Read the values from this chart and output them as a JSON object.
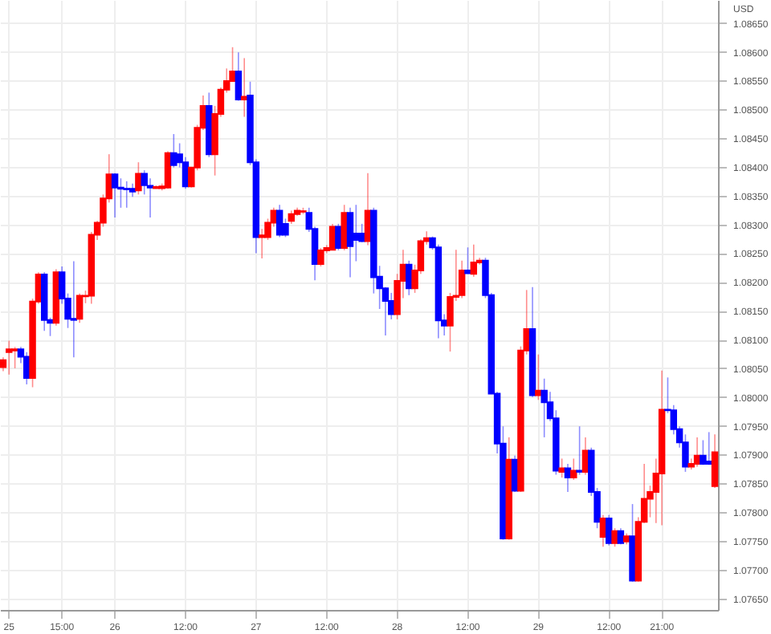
{
  "chart_data": {
    "type": "candlestick",
    "ylabel": "USD",
    "categories": [
      null,
      "25",
      null,
      null,
      null,
      null,
      null,
      null,
      null,
      null,
      "15:00",
      null,
      null,
      null,
      null,
      null,
      null,
      null,
      null,
      "26",
      null,
      null,
      null,
      null,
      null,
      null,
      null,
      null,
      null,
      null,
      null,
      "12:00",
      null,
      null,
      null,
      null,
      null,
      null,
      null,
      null,
      null,
      null,
      null,
      "27",
      null,
      null,
      null,
      null,
      null,
      null,
      null,
      null,
      null,
      null,
      null,
      "12:00",
      null,
      null,
      null,
      null,
      null,
      null,
      null,
      null,
      null,
      null,
      null,
      "28",
      null,
      null,
      null,
      null,
      null,
      null,
      null,
      null,
      null,
      null,
      null,
      "12:00",
      null,
      null,
      null,
      null,
      null,
      null,
      null,
      null,
      null,
      null,
      null,
      "29",
      null,
      null,
      null,
      null,
      null,
      null,
      null,
      null,
      null,
      null,
      null,
      "12:00",
      null,
      null,
      null,
      null,
      null,
      null,
      null,
      null,
      "21:00",
      null,
      null,
      null,
      null,
      null,
      null,
      null,
      null,
      null
    ],
    "ohlc": [
      [
        1.08052,
        1.08069,
        1.08045,
        1.08064
      ],
      [
        1.08078,
        1.08098,
        1.08039,
        1.08083
      ],
      [
        1.08081,
        1.08087,
        1.0805,
        1.08083
      ],
      [
        1.08083,
        1.08087,
        1.08059,
        1.0807
      ],
      [
        1.0807,
        1.08078,
        1.08022,
        1.08033
      ],
      [
        1.08033,
        1.08171,
        1.08017,
        1.08166
      ],
      [
        1.08166,
        1.08217,
        1.08162,
        1.08213
      ],
      [
        1.08213,
        1.08217,
        1.08115,
        1.08134
      ],
      [
        1.08134,
        1.08138,
        1.08106,
        1.08129
      ],
      [
        1.08129,
        1.08222,
        1.08124,
        1.08217
      ],
      [
        1.08217,
        1.08227,
        1.08162,
        1.08171
      ],
      [
        1.08171,
        1.0818,
        1.0812,
        1.08136
      ],
      [
        1.08136,
        1.08236,
        1.08069,
        1.08134
      ],
      [
        1.08136,
        1.0818,
        1.08129,
        1.08176
      ],
      [
        1.08175,
        1.08185,
        1.08163,
        1.08176
      ],
      [
        1.08176,
        1.08287,
        1.08162,
        1.08282
      ],
      [
        1.08282,
        1.08306,
        1.08273,
        1.08303
      ],
      [
        1.08303,
        1.08352,
        1.08296,
        1.08345
      ],
      [
        1.08345,
        1.08422,
        1.08338,
        1.08387
      ],
      [
        1.08387,
        1.08389,
        1.08312,
        1.08364
      ],
      [
        1.08364,
        1.0838,
        1.08329,
        1.08362
      ],
      [
        1.08362,
        1.08375,
        1.08329,
        1.08361
      ],
      [
        1.08362,
        1.08371,
        1.08348,
        1.08357
      ],
      [
        1.08359,
        1.08408,
        1.08352,
        1.08388
      ],
      [
        1.08388,
        1.08394,
        1.08352,
        1.08368
      ],
      [
        1.08367,
        1.0838,
        1.08312,
        1.08364
      ],
      [
        1.08363,
        1.08368,
        1.08362,
        1.08365
      ],
      [
        1.08363,
        1.08371,
        1.08359,
        1.08366
      ],
      [
        1.08364,
        1.08427,
        1.08362,
        1.08424
      ],
      [
        1.08424,
        1.08457,
        1.08399,
        1.08403
      ],
      [
        1.08422,
        1.08441,
        1.08399,
        1.08408
      ],
      [
        1.08408,
        1.08417,
        1.08362,
        1.08366
      ],
      [
        1.08366,
        1.08399,
        1.08364,
        1.08399
      ],
      [
        1.08399,
        1.08473,
        1.08394,
        1.08468
      ],
      [
        1.08468,
        1.08524,
        1.08464,
        1.08506
      ],
      [
        1.08506,
        1.08529,
        1.08417,
        1.08422
      ],
      [
        1.08422,
        1.08506,
        1.08385,
        1.08492
      ],
      [
        1.08492,
        1.08538,
        1.08487,
        1.08534
      ],
      [
        1.08534,
        1.08571,
        1.08529,
        1.08549
      ],
      [
        1.08549,
        1.08608,
        1.08548,
        1.08566
      ],
      [
        1.08566,
        1.08599,
        1.08515,
        1.08517
      ],
      [
        1.08517,
        1.08589,
        1.08487,
        1.08522
      ],
      [
        1.08524,
        1.08548,
        1.08403,
        1.08408
      ],
      [
        1.08408,
        1.08413,
        1.0825,
        1.08278
      ],
      [
        1.08278,
        1.08292,
        1.08241,
        1.08281
      ],
      [
        1.08278,
        1.0831,
        1.08273,
        1.08303
      ],
      [
        1.08303,
        1.08329,
        1.08296,
        1.08324
      ],
      [
        1.08324,
        1.08334,
        1.08278,
        1.08282
      ],
      [
        1.08301,
        1.0831,
        1.08278,
        1.08282
      ],
      [
        1.08306,
        1.08324,
        1.08301,
        1.08318
      ],
      [
        1.08318,
        1.08329,
        1.08315,
        1.08324
      ],
      [
        1.08322,
        1.08329,
        1.08318,
        1.08323
      ],
      [
        1.0832,
        1.08329,
        1.08287,
        1.08292
      ],
      [
        1.08292,
        1.08296,
        1.08203,
        1.08231
      ],
      [
        1.08231,
        1.08259,
        1.08227,
        1.08255
      ],
      [
        1.08255,
        1.08264,
        1.0825,
        1.08259
      ],
      [
        1.08256,
        1.08301,
        1.08255,
        1.08296
      ],
      [
        1.08296,
        1.08301,
        1.08255,
        1.08259
      ],
      [
        1.08259,
        1.08334,
        1.08255,
        1.0832
      ],
      [
        1.0832,
        1.08329,
        1.08208,
        1.08262
      ],
      [
        1.08284,
        1.08334,
        1.08236,
        1.08273
      ],
      [
        1.08284,
        1.08301,
        1.08269,
        1.08271
      ],
      [
        1.08271,
        1.08389,
        1.08264,
        1.08324
      ],
      [
        1.08324,
        1.08329,
        1.0818,
        1.08208
      ],
      [
        1.08209,
        1.08228,
        1.08153,
        1.08189
      ],
      [
        1.08189,
        1.08191,
        1.08107,
        1.08167
      ],
      [
        1.08167,
        1.08181,
        1.08135,
        1.08144
      ],
      [
        1.08144,
        1.08214,
        1.08135,
        1.08202
      ],
      [
        1.08202,
        1.08256,
        1.08172,
        1.0823
      ],
      [
        1.0823,
        1.08237,
        1.08177,
        1.08189
      ],
      [
        1.08189,
        1.0823,
        1.08181,
        1.0822
      ],
      [
        1.0822,
        1.08274,
        1.08214,
        1.08271
      ],
      [
        1.08271,
        1.08288,
        1.08265,
        1.08276
      ],
      [
        1.08276,
        1.08279,
        1.08256,
        1.0826
      ],
      [
        1.0826,
        1.08265,
        1.08102,
        1.08133
      ],
      [
        1.08133,
        1.08144,
        1.08107,
        1.08124
      ],
      [
        1.08124,
        1.08181,
        1.08079,
        1.08174
      ],
      [
        1.08174,
        1.08256,
        1.08167,
        1.08176
      ],
      [
        1.08177,
        1.08237,
        1.08172,
        1.0822
      ],
      [
        1.0822,
        1.0826,
        1.08214,
        1.08215
      ],
      [
        1.08214,
        1.08265,
        1.08209,
        1.08234
      ],
      [
        1.08234,
        1.08242,
        1.0823,
        1.08237
      ],
      [
        1.08237,
        1.08242,
        1.08172,
        1.08177
      ],
      [
        1.08177,
        1.08181,
        1.08005,
        1.08006
      ],
      [
        1.08006,
        1.08009,
        1.07902,
        1.07919
      ],
      [
        1.07919,
        1.07949,
        1.07752,
        1.07754
      ],
      [
        1.07754,
        1.0793,
        1.07752,
        1.07891
      ],
      [
        1.07891,
        1.07898,
        1.07835,
        1.07837
      ],
      [
        1.07837,
        1.08088,
        1.07835,
        1.08081
      ],
      [
        1.08081,
        1.08186,
        1.08074,
        1.08118
      ],
      [
        1.08118,
        1.08191,
        1.08,
        1.08003
      ],
      [
        1.08003,
        1.08074,
        1.07995,
        1.08011
      ],
      [
        1.08011,
        1.08032,
        1.0793,
        1.07991
      ],
      [
        1.07991,
        1.08009,
        1.07958,
        1.07963
      ],
      [
        1.07963,
        1.07977,
        1.07865,
        1.07872
      ],
      [
        1.0787,
        1.07893,
        1.0786,
        1.07876
      ],
      [
        1.07876,
        1.07884,
        1.07835,
        1.0786
      ],
      [
        1.0786,
        1.07893,
        1.07856,
        1.07872
      ],
      [
        1.07872,
        1.07949,
        1.07865,
        1.0787
      ],
      [
        1.0787,
        1.0793,
        1.07865,
        1.07907
      ],
      [
        1.07907,
        1.07912,
        1.07828,
        1.07835
      ],
      [
        1.07835,
        1.07842,
        1.07772,
        1.07783
      ],
      [
        1.07757,
        1.07795,
        1.0774,
        1.07789
      ],
      [
        1.07789,
        1.07795,
        1.07742,
        1.07746
      ],
      [
        1.07746,
        1.07772,
        1.0774,
        1.07767
      ],
      [
        1.07767,
        1.07772,
        1.07744,
        1.07746
      ],
      [
        1.07749,
        1.07763,
        1.07744,
        1.07758
      ],
      [
        1.07758,
        1.07814,
        1.07679,
        1.07681
      ],
      [
        1.07681,
        1.07791,
        1.07679,
        1.07783
      ],
      [
        1.07783,
        1.07884,
        1.07781,
        1.07823
      ],
      [
        1.07823,
        1.07846,
        1.07791,
        1.07835
      ],
      [
        1.07835,
        1.07893,
        1.07781,
        1.07867
      ],
      [
        1.07867,
        1.08046,
        1.07777,
        1.07978
      ],
      [
        1.07978,
        1.08034,
        1.07972,
        1.07977
      ],
      [
        1.07977,
        1.07986,
        1.07935,
        1.07944
      ],
      [
        1.07944,
        1.07949,
        1.07912,
        1.07921
      ],
      [
        1.07921,
        1.07935,
        1.0787,
        1.07879
      ],
      [
        1.07879,
        1.07893,
        1.07874,
        1.07884
      ],
      [
        1.07884,
        1.0793,
        1.07879,
        1.07898
      ],
      [
        1.07898,
        1.07925,
        1.07882,
        1.07884
      ],
      [
        1.07888,
        1.07939,
        1.07882,
        1.07884
      ],
      [
        1.07845,
        1.07935,
        1.07842,
        1.07904
      ]
    ],
    "colors": [
      "#ff0000",
      "#ff0000",
      "#ff0000",
      "#0000ff",
      "#0000ff",
      "#ff0000",
      "#ff0000",
      "#0000ff",
      "#0000ff",
      "#ff0000",
      "#0000ff",
      "#0000ff",
      "#0000ff",
      "#ff0000",
      "#ff0000",
      "#ff0000",
      "#ff0000",
      "#ff0000",
      "#ff0000",
      "#0000ff",
      "#0000ff",
      "#0000ff",
      "#0000ff",
      "#ff0000",
      "#0000ff",
      "#0000ff",
      "#ff0000",
      "#ff0000",
      "#ff0000",
      "#0000ff",
      "#0000ff",
      "#0000ff",
      "#ff0000",
      "#ff0000",
      "#ff0000",
      "#0000ff",
      "#ff0000",
      "#ff0000",
      "#ff0000",
      "#ff0000",
      "#0000ff",
      "#ff0000",
      "#0000ff",
      "#0000ff",
      "#ff0000",
      "#ff0000",
      "#ff0000",
      "#0000ff",
      "#0000ff",
      "#ff0000",
      "#ff0000",
      "#ff0000",
      "#0000ff",
      "#0000ff",
      "#ff0000",
      "#ff0000",
      "#ff0000",
      "#0000ff",
      "#ff0000",
      "#0000ff",
      "#0000ff",
      "#0000ff",
      "#ff0000",
      "#0000ff",
      "#0000ff",
      "#0000ff",
      "#0000ff",
      "#ff0000",
      "#ff0000",
      "#0000ff",
      "#ff0000",
      "#ff0000",
      "#ff0000",
      "#0000ff",
      "#0000ff",
      "#0000ff",
      "#ff0000",
      "#ff0000",
      "#ff0000",
      "#0000ff",
      "#ff0000",
      "#ff0000",
      "#0000ff",
      "#0000ff",
      "#0000ff",
      "#0000ff",
      "#ff0000",
      "#0000ff",
      "#ff0000",
      "#ff0000",
      "#0000ff",
      "#ff0000",
      "#0000ff",
      "#0000ff",
      "#0000ff",
      "#ff0000",
      "#0000ff",
      "#ff0000",
      "#0000ff",
      "#ff0000",
      "#0000ff",
      "#0000ff",
      "#ff0000",
      "#0000ff",
      "#ff0000",
      "#0000ff",
      "#ff0000",
      "#0000ff",
      "#ff0000",
      "#ff0000",
      "#ff0000",
      "#ff0000",
      "#ff0000",
      "#0000ff",
      "#0000ff",
      "#0000ff",
      "#0000ff",
      "#ff0000",
      "#ff0000",
      "#0000ff",
      "#0000ff",
      "#ff0000"
    ],
    "ylim": [
      1.0763,
      1.0869
    ],
    "yticks": [
      {
        "value": 1.0765,
        "label": "1.07650"
      },
      {
        "value": 1.077,
        "label": "1.07700"
      },
      {
        "value": 1.0775,
        "label": "1.07750"
      },
      {
        "value": 1.078,
        "label": "1.07800"
      },
      {
        "value": 1.0785,
        "label": "1.07850"
      },
      {
        "value": 1.079,
        "label": "1.07900"
      },
      {
        "value": 1.0795,
        "label": "1.07950"
      },
      {
        "value": 1.08,
        "label": "1.08000"
      },
      {
        "value": 1.0805,
        "label": "1.08050"
      },
      {
        "value": 1.081,
        "label": "1.08100"
      },
      {
        "value": 1.0815,
        "label": "1.08150"
      },
      {
        "value": 1.082,
        "label": "1.08200"
      },
      {
        "value": 1.0825,
        "label": "1.08250"
      },
      {
        "value": 1.083,
        "label": "1.08300"
      },
      {
        "value": 1.0835,
        "label": "1.08350"
      },
      {
        "value": 1.084,
        "label": "1.08400"
      },
      {
        "value": 1.0845,
        "label": "1.08450"
      },
      {
        "value": 1.085,
        "label": "1.08500"
      },
      {
        "value": 1.0855,
        "label": "1.08550"
      },
      {
        "value": 1.086,
        "label": "1.08600"
      },
      {
        "value": 1.0865,
        "label": "1.08650"
      }
    ],
    "grid": true
  }
}
